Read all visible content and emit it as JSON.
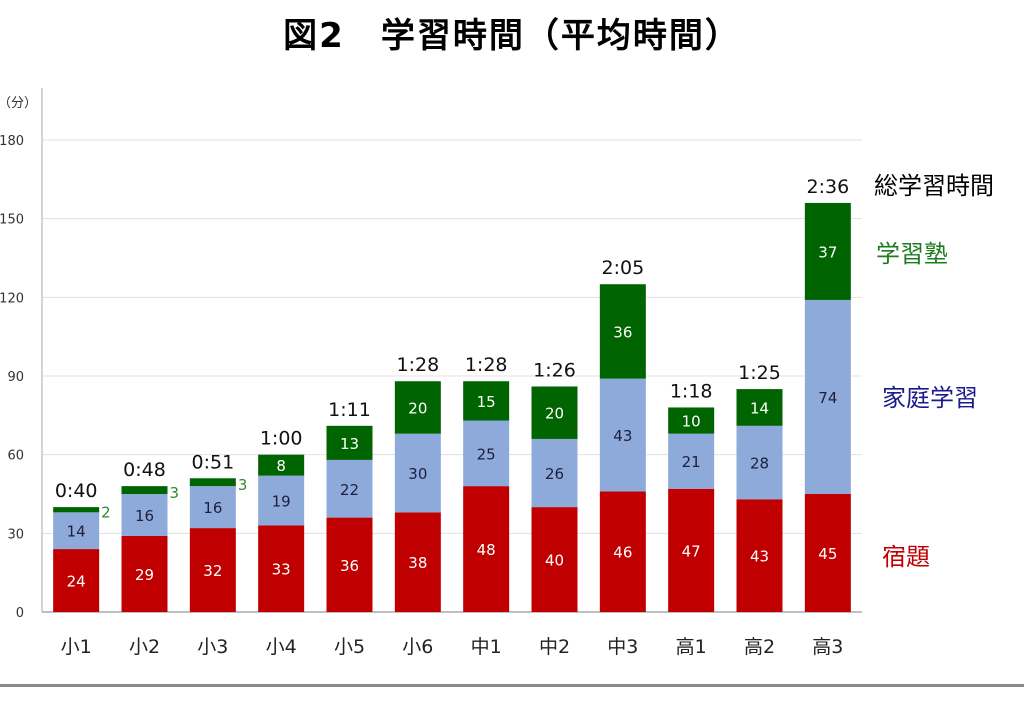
{
  "chart_data": {
    "type": "bar",
    "stacked": true,
    "title": "図2　学習時間（平均時間）",
    "ylabel": "（分）",
    "xlabel": "",
    "ylim": [
      0,
      180
    ],
    "yticks": [
      0,
      30,
      60,
      90,
      120,
      150,
      180
    ],
    "grid": true,
    "categories": [
      "小1",
      "小2",
      "小3",
      "小4",
      "小5",
      "小6",
      "中1",
      "中2",
      "中3",
      "高1",
      "高2",
      "高3"
    ],
    "series": [
      {
        "name": "宿題",
        "color": "#c00000",
        "label_color": "#ffffff",
        "values": [
          24,
          29,
          32,
          33,
          36,
          38,
          48,
          40,
          46,
          47,
          43,
          45
        ]
      },
      {
        "name": "家庭学習",
        "color": "#8eaadb",
        "label_color": "#1f1f3a",
        "values": [
          14,
          16,
          16,
          19,
          22,
          30,
          25,
          26,
          43,
          21,
          28,
          74
        ]
      },
      {
        "name": "学習塾",
        "color": "#006400",
        "label_color": "#ffffff",
        "outside_label_color": "#2e8b2e",
        "values": [
          2,
          3,
          3,
          8,
          13,
          20,
          15,
          20,
          36,
          10,
          14,
          37
        ]
      }
    ],
    "totals_label": "総学習時間",
    "totals": [
      "0:40",
      "0:48",
      "0:51",
      "1:00",
      "1:11",
      "1:28",
      "1:28",
      "1:26",
      "2:05",
      "1:18",
      "1:25",
      "2:36"
    ],
    "legend": [
      {
        "label": "総学習時間",
        "color": "#000000"
      },
      {
        "label": "学習塾",
        "color": "#1e7b1e"
      },
      {
        "label": "家庭学習",
        "color": "#1a1a8c"
      },
      {
        "label": "宿題",
        "color": "#c00000"
      }
    ],
    "legend_position": "right"
  }
}
